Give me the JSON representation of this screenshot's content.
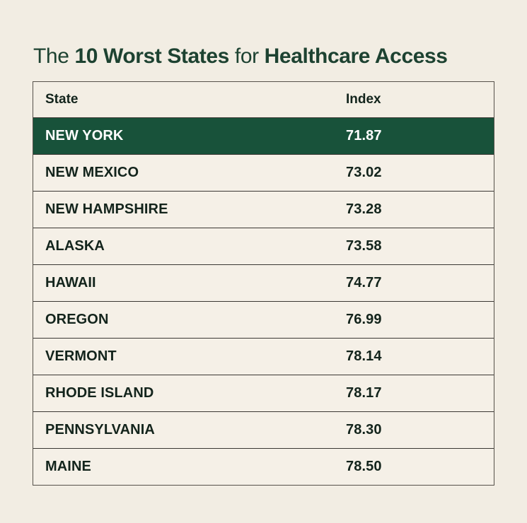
{
  "page": {
    "background": "#f2ede3",
    "accent_green": "#18523a",
    "title_color": "#1d4231",
    "text_color": "#13241c"
  },
  "title": {
    "part1": "The ",
    "bold1": "10 Worst States",
    "part2": " for ",
    "bold2": "Healthcare Access"
  },
  "table": {
    "headers": {
      "state": "State",
      "index": "Index"
    },
    "rows": [
      {
        "state": "NEW YORK",
        "index": "71.87",
        "highlighted": true
      },
      {
        "state": "NEW MEXICO",
        "index": "73.02",
        "highlighted": false
      },
      {
        "state": "NEW HAMPSHIRE",
        "index": "73.28",
        "highlighted": false
      },
      {
        "state": "ALASKA",
        "index": "73.58",
        "highlighted": false
      },
      {
        "state": "HAWAII",
        "index": "74.77",
        "highlighted": false
      },
      {
        "state": "OREGON",
        "index": "76.99",
        "highlighted": false
      },
      {
        "state": "VERMONT",
        "index": "78.14",
        "highlighted": false
      },
      {
        "state": "RHODE ISLAND",
        "index": "78.17",
        "highlighted": false
      },
      {
        "state": "PENNSYLVANIA",
        "index": "78.30",
        "highlighted": false
      },
      {
        "state": "MAINE",
        "index": "78.50",
        "highlighted": false
      }
    ]
  },
  "chart_data": {
    "type": "table",
    "title": "The 10 Worst States for Healthcare Access",
    "columns": [
      "State",
      "Index"
    ],
    "rows": [
      [
        "NEW YORK",
        71.87
      ],
      [
        "NEW MEXICO",
        73.02
      ],
      [
        "NEW HAMPSHIRE",
        73.28
      ],
      [
        "ALASKA",
        73.58
      ],
      [
        "HAWAII",
        74.77
      ],
      [
        "OREGON",
        76.99
      ],
      [
        "VERMONT",
        78.14
      ],
      [
        "RHODE ISLAND",
        78.17
      ],
      [
        "PENNSYLVANIA",
        78.3
      ],
      [
        "MAINE",
        78.5
      ]
    ],
    "highlighted_row": "NEW YORK",
    "sort_order": "ascending by Index (worst first)"
  }
}
